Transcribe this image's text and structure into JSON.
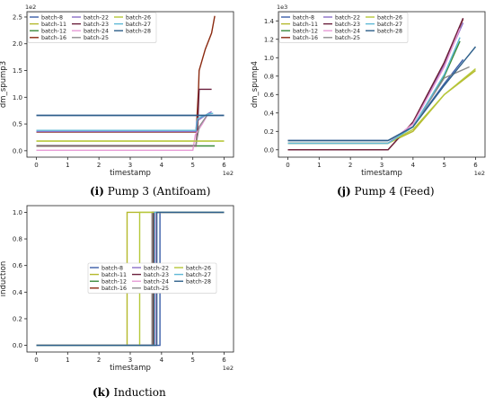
{
  "captions": [
    {
      "letter": "(i)",
      "text": " Pump 3 (Antifoam)"
    },
    {
      "letter": "(j)",
      "text": " Pump 4  (Feed)"
    },
    {
      "letter": "(k)",
      "text": " Induction"
    }
  ],
  "palette": {
    "batch-8": "#3b5ea8",
    "batch-11": "#b5b92c",
    "batch-12": "#3a8a3a",
    "batch-16": "#8b2a10",
    "batch-22": "#8a6fc7",
    "batch-23": "#6b1f3c",
    "batch-24": "#e79bd6",
    "batch-25": "#8c8c8c",
    "batch-26": "#b6c83a",
    "batch-27": "#5fb9d6",
    "batch-28": "#2d5f8a"
  },
  "chart_data": [
    {
      "type": "line",
      "xlabel": "timestamp",
      "ylabel": "dm_spump3",
      "x_exponent": "1e2",
      "y_exponent": "1e2",
      "xlim": [
        -0.3,
        6.3
      ],
      "ylim": [
        -0.12,
        2.6
      ],
      "xticks": [
        "0",
        "1",
        "2",
        "3",
        "4",
        "5",
        "6"
      ],
      "yticks": [
        "0.0",
        "0.5",
        "1.0",
        "1.5",
        "2.0",
        "2.5"
      ],
      "legend": "top-left",
      "series": [
        {
          "name": "batch-8",
          "points": [
            [
              0,
              0.66
            ],
            [
              6,
              0.66
            ]
          ]
        },
        {
          "name": "batch-11",
          "points": [
            [
              0,
              0.18
            ],
            [
              6,
              0.18
            ]
          ]
        },
        {
          "name": "batch-12",
          "points": [
            [
              0,
              0.09
            ],
            [
              5.7,
              0.09
            ]
          ]
        },
        {
          "name": "batch-16",
          "points": [
            [
              0,
              0.35
            ],
            [
              5.1,
              0.35
            ],
            [
              5.12,
              0.5
            ],
            [
              5.18,
              1.15
            ],
            [
              5.2,
              1.5
            ],
            [
              5.4,
              1.9
            ],
            [
              5.6,
              2.2
            ],
            [
              5.7,
              2.52
            ]
          ]
        },
        {
          "name": "batch-22",
          "points": [
            [
              0,
              0.36
            ],
            [
              5.1,
              0.36
            ],
            [
              5.12,
              0.55
            ],
            [
              5.5,
              0.7
            ],
            [
              5.6,
              0.73
            ]
          ]
        },
        {
          "name": "batch-23",
          "points": [
            [
              0,
              0.09
            ],
            [
              5.1,
              0.09
            ],
            [
              5.15,
              0.4
            ],
            [
              5.2,
              1.15
            ],
            [
              5.6,
              1.15
            ]
          ]
        },
        {
          "name": "batch-24",
          "points": [
            [
              0,
              0.01
            ],
            [
              5.0,
              0.01
            ],
            [
              5.08,
              0.3
            ],
            [
              5.3,
              0.5
            ],
            [
              5.5,
              0.7
            ]
          ]
        },
        {
          "name": "batch-25",
          "points": [
            [
              0,
              0.1
            ],
            [
              5.1,
              0.1
            ],
            [
              5.2,
              0.45
            ],
            [
              5.5,
              0.7
            ]
          ]
        },
        {
          "name": "batch-26",
          "points": [
            [
              0,
              0.18
            ],
            [
              6,
              0.18
            ]
          ]
        },
        {
          "name": "batch-27",
          "points": [
            [
              0,
              0.38
            ],
            [
              5.1,
              0.38
            ],
            [
              5.15,
              0.6
            ],
            [
              5.5,
              0.69
            ],
            [
              5.65,
              0.7
            ]
          ]
        },
        {
          "name": "batch-28",
          "points": [
            [
              0,
              0.66
            ],
            [
              6,
              0.66
            ]
          ]
        }
      ]
    },
    {
      "type": "line",
      "xlabel": "timestamp",
      "ylabel": "dm_spump4",
      "x_exponent": "1e2",
      "y_exponent": "1e3",
      "xlim": [
        -0.3,
        6.3
      ],
      "ylim": [
        -0.08,
        1.5
      ],
      "xticks": [
        "0",
        "1",
        "2",
        "3",
        "4",
        "5",
        "6"
      ],
      "yticks": [
        "0.0",
        "0.2",
        "0.4",
        "0.6",
        "0.8",
        "1.0",
        "1.2",
        "1.4"
      ],
      "legend": "top-left",
      "series": [
        {
          "name": "batch-8",
          "points": [
            [
              0,
              0.1
            ],
            [
              3.2,
              0.1
            ],
            [
              4.0,
              0.25
            ],
            [
              5.0,
              0.72
            ],
            [
              5.6,
              0.98
            ]
          ]
        },
        {
          "name": "batch-11",
          "points": [
            [
              0,
              0.07
            ],
            [
              3.2,
              0.07
            ],
            [
              4.0,
              0.2
            ],
            [
              5.0,
              0.6
            ],
            [
              6.0,
              0.86
            ]
          ]
        },
        {
          "name": "batch-12",
          "points": [
            [
              0,
              0.07
            ],
            [
              3.2,
              0.07
            ],
            [
              4.0,
              0.25
            ],
            [
              5.0,
              0.8
            ],
            [
              5.5,
              1.18
            ]
          ]
        },
        {
          "name": "batch-16",
          "points": [
            [
              0,
              0.0
            ],
            [
              3.2,
              0.0
            ],
            [
              4.0,
              0.3
            ],
            [
              5.0,
              0.95
            ],
            [
              5.6,
              1.42
            ]
          ]
        },
        {
          "name": "batch-22",
          "points": [
            [
              0,
              0.07
            ],
            [
              3.2,
              0.07
            ],
            [
              4.0,
              0.28
            ],
            [
              5.0,
              0.92
            ],
            [
              5.6,
              1.38
            ]
          ]
        },
        {
          "name": "batch-23",
          "points": [
            [
              0,
              0.0
            ],
            [
              3.2,
              0.0
            ],
            [
              4.0,
              0.3
            ],
            [
              5.0,
              0.95
            ],
            [
              5.6,
              1.43
            ]
          ]
        },
        {
          "name": "batch-24",
          "points": [
            [
              0,
              0.07
            ],
            [
              3.2,
              0.07
            ],
            [
              4.0,
              0.28
            ],
            [
              5.0,
              0.9
            ],
            [
              5.5,
              1.32
            ]
          ]
        },
        {
          "name": "batch-25",
          "points": [
            [
              0,
              0.07
            ],
            [
              3.2,
              0.07
            ],
            [
              4.0,
              0.25
            ],
            [
              5.0,
              0.78
            ],
            [
              5.8,
              0.9
            ]
          ]
        },
        {
          "name": "batch-26",
          "points": [
            [
              0,
              0.07
            ],
            [
              3.2,
              0.07
            ],
            [
              4.0,
              0.22
            ],
            [
              5.0,
              0.6
            ],
            [
              6.0,
              0.88
            ]
          ]
        },
        {
          "name": "batch-27",
          "points": [
            [
              0,
              0.07
            ],
            [
              3.2,
              0.07
            ],
            [
              4.0,
              0.25
            ],
            [
              5.0,
              0.82
            ],
            [
              5.5,
              1.22
            ]
          ]
        },
        {
          "name": "batch-28",
          "points": [
            [
              0,
              0.1
            ],
            [
              3.2,
              0.1
            ],
            [
              4.0,
              0.25
            ],
            [
              5.0,
              0.7
            ],
            [
              6.0,
              1.12
            ]
          ]
        }
      ]
    },
    {
      "type": "line",
      "xlabel": "timestamp",
      "ylabel": "induction",
      "x_exponent": "1e2",
      "y_exponent": "",
      "xlim": [
        -0.3,
        6.3
      ],
      "ylim": [
        -0.05,
        1.05
      ],
      "xticks": [
        "0",
        "1",
        "2",
        "3",
        "4",
        "5",
        "6"
      ],
      "yticks": [
        "0.0",
        "0.2",
        "0.4",
        "0.6",
        "0.8",
        "1.0"
      ],
      "legend": "center",
      "series": [
        {
          "name": "batch-8",
          "switch": 3.95
        },
        {
          "name": "batch-11",
          "switch": 2.9
        },
        {
          "name": "batch-12",
          "switch": 3.72
        },
        {
          "name": "batch-16",
          "switch": 3.7
        },
        {
          "name": "batch-22",
          "switch": 3.8
        },
        {
          "name": "batch-23",
          "switch": 3.75
        },
        {
          "name": "batch-24",
          "switch": 3.82
        },
        {
          "name": "batch-25",
          "switch": 3.7
        },
        {
          "name": "batch-26",
          "switch": 3.3
        },
        {
          "name": "batch-27",
          "switch": 3.78
        },
        {
          "name": "batch-28",
          "switch": 3.85
        }
      ]
    }
  ]
}
